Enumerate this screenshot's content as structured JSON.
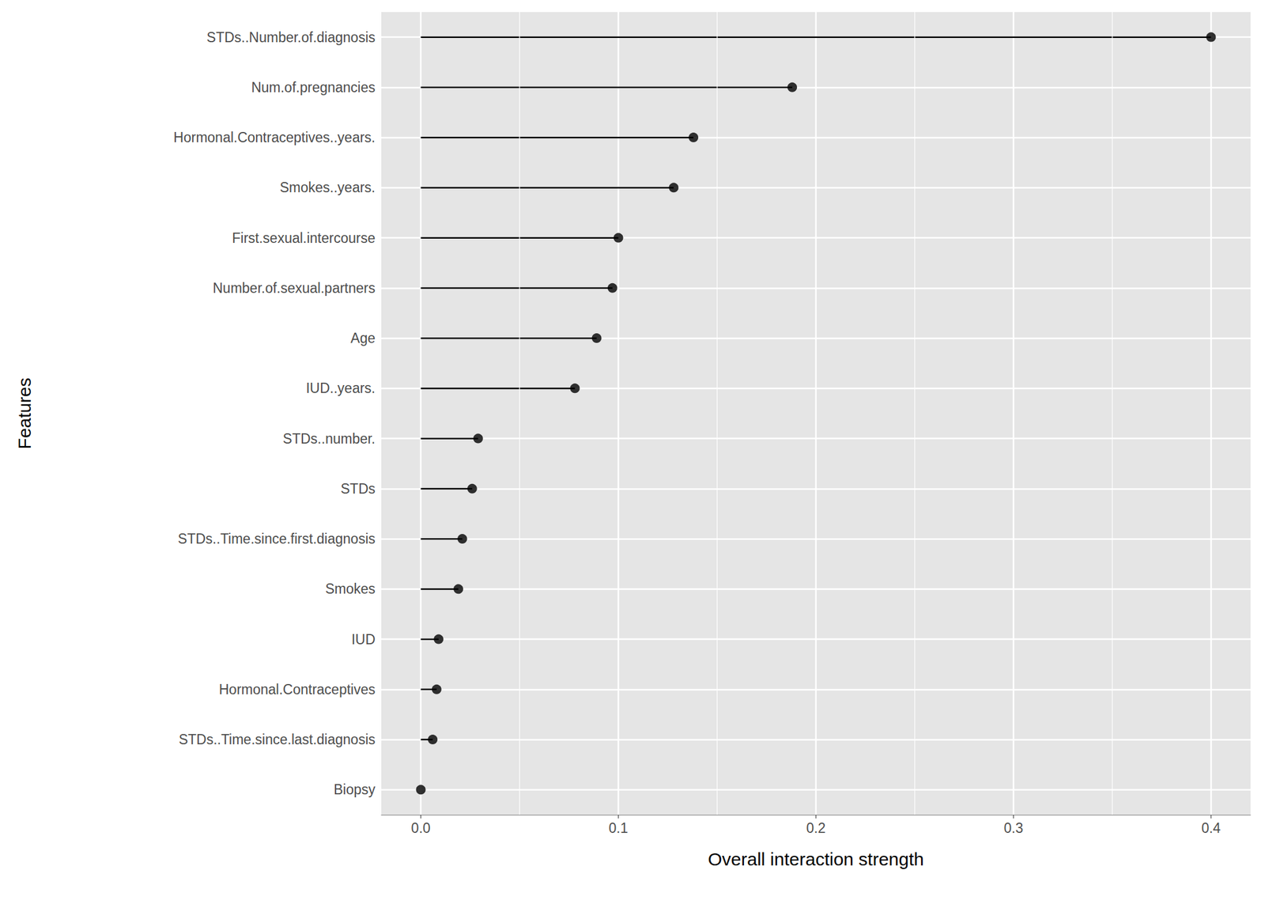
{
  "chart_data": {
    "type": "lollipop",
    "orientation": "horizontal",
    "x_label": "Overall interaction strength",
    "y_label": "Features",
    "categories": [
      "STDs..Number.of.diagnosis",
      "Num.of.pregnancies",
      "Hormonal.Contraceptives..years.",
      "Smokes..years.",
      "First.sexual.intercourse",
      "Number.of.sexual.partners",
      "Age",
      "IUD..years.",
      "STDs..number.",
      "STDs",
      "STDs..Time.since.first.diagnosis",
      "Smokes",
      "IUD",
      "Hormonal.Contraceptives",
      "STDs..Time.since.last.diagnosis",
      "Biopsy"
    ],
    "values": [
      0.4,
      0.188,
      0.138,
      0.128,
      0.1,
      0.097,
      0.089,
      0.078,
      0.029,
      0.026,
      0.021,
      0.019,
      0.009,
      0.008,
      0.006,
      0.0
    ],
    "color": "#000000",
    "xlim": [
      -0.02,
      0.42
    ],
    "xticks": [
      {
        "value": 0,
        "label": "0.0"
      },
      0.1,
      0.2,
      0.3,
      0.4
    ],
    "grid": true
  }
}
